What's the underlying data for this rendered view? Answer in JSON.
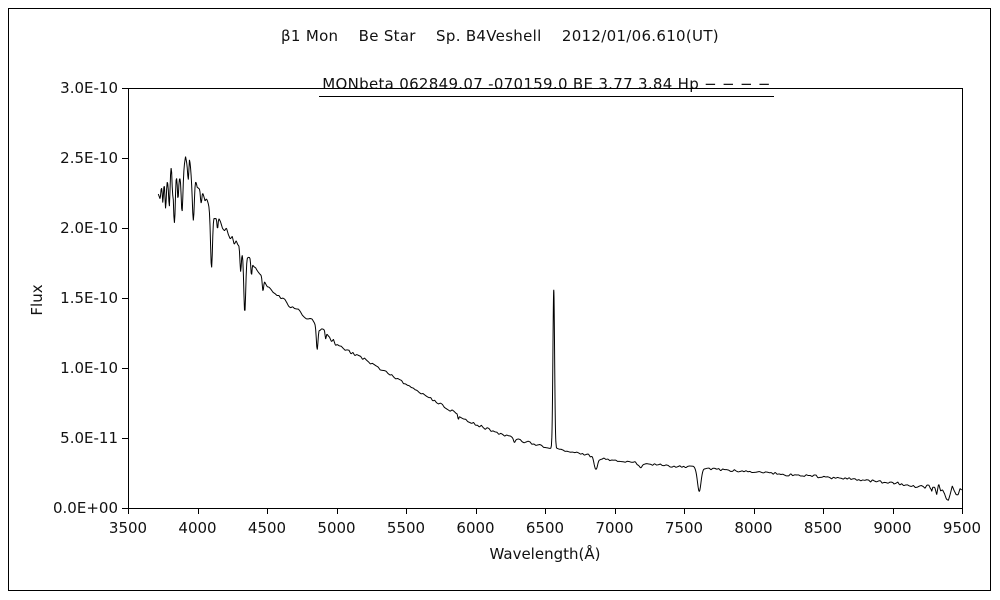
{
  "chart_data": {
    "type": "line",
    "title": "β1 Mon    Be Star    Sp. B4Veshell    2012/01/06.610(UT)",
    "subtitle": "MONbeta 062849.07 -070159.0 BE 3.77 3.84 Hp − − − −",
    "xlabel": "Wavelength(Å)",
    "ylabel": "Flux",
    "xlim": [
      3500,
      9500
    ],
    "ylim": [
      0,
      3e-10
    ],
    "x_ticks": [
      3500,
      4000,
      4500,
      5000,
      5500,
      6000,
      6500,
      7000,
      7500,
      8000,
      8500,
      9000,
      9500
    ],
    "y_ticks": [
      {
        "value": 0,
        "label": "0.0E+00"
      },
      {
        "value": 5e-11,
        "label": "5.0E-11"
      },
      {
        "value": 1e-10,
        "label": "1.0E-10"
      },
      {
        "value": 1.5e-10,
        "label": "1.5E-10"
      },
      {
        "value": 2e-10,
        "label": "2.0E-10"
      },
      {
        "value": 2.5e-10,
        "label": "2.5E-10"
      },
      {
        "value": 3e-10,
        "label": "3.0E-10"
      }
    ],
    "grid": false,
    "legend": false,
    "line_color": "#000000",
    "flux_scale": 1e-10,
    "spectrum": {
      "x_start": 3718,
      "x_end": 9500,
      "sample_step": 4,
      "noise_knot_step": 14,
      "seed": 20120106,
      "continuum_points": [
        [
          3718,
          2.26
        ],
        [
          3760,
          2.34
        ],
        [
          3800,
          2.37
        ],
        [
          3850,
          2.4
        ],
        [
          3900,
          2.42
        ],
        [
          3950,
          2.4
        ],
        [
          4000,
          2.33
        ],
        [
          4050,
          2.24
        ],
        [
          4100,
          2.12
        ],
        [
          4150,
          2.05
        ],
        [
          4200,
          1.98
        ],
        [
          4250,
          1.92
        ],
        [
          4300,
          1.86
        ],
        [
          4350,
          1.79
        ],
        [
          4400,
          1.73
        ],
        [
          4450,
          1.66
        ],
        [
          4500,
          1.6
        ],
        [
          4600,
          1.5
        ],
        [
          4700,
          1.42
        ],
        [
          4800,
          1.35
        ],
        [
          4900,
          1.27
        ],
        [
          5000,
          1.17
        ],
        [
          5100,
          1.11
        ],
        [
          5200,
          1.06
        ],
        [
          5300,
          1.0
        ],
        [
          5400,
          0.94
        ],
        [
          5500,
          0.89
        ],
        [
          5600,
          0.83
        ],
        [
          5700,
          0.77
        ],
        [
          5800,
          0.71
        ],
        [
          5900,
          0.65
        ],
        [
          6000,
          0.6
        ],
        [
          6100,
          0.56
        ],
        [
          6200,
          0.52
        ],
        [
          6300,
          0.49
        ],
        [
          6400,
          0.46
        ],
        [
          6500,
          0.44
        ],
        [
          6600,
          0.42
        ],
        [
          6700,
          0.4
        ],
        [
          6800,
          0.38
        ],
        [
          6900,
          0.355
        ],
        [
          7000,
          0.34
        ],
        [
          7100,
          0.33
        ],
        [
          7200,
          0.32
        ],
        [
          7300,
          0.31
        ],
        [
          7400,
          0.3
        ],
        [
          7500,
          0.295
        ],
        [
          7600,
          0.29
        ],
        [
          7700,
          0.28
        ],
        [
          7800,
          0.27
        ],
        [
          7900,
          0.265
        ],
        [
          8000,
          0.26
        ],
        [
          8200,
          0.245
        ],
        [
          8400,
          0.23
        ],
        [
          8600,
          0.215
        ],
        [
          8800,
          0.2
        ],
        [
          9000,
          0.175
        ],
        [
          9200,
          0.155
        ],
        [
          9350,
          0.14
        ],
        [
          9450,
          0.125
        ],
        [
          9500,
          0.11
        ]
      ],
      "absorption_lines": [
        {
          "center": 3750,
          "depth": 0.2,
          "sigma": 5
        },
        {
          "center": 3771,
          "depth": 0.24,
          "sigma": 5
        },
        {
          "center": 3798,
          "depth": 0.26,
          "sigma": 5
        },
        {
          "center": 3820,
          "depth": 0.14,
          "sigma": 4
        },
        {
          "center": 3835,
          "depth": 0.3,
          "sigma": 6
        },
        {
          "center": 3860,
          "depth": 0.12,
          "sigma": 4
        },
        {
          "center": 3889,
          "depth": 0.28,
          "sigma": 6
        },
        {
          "center": 3934,
          "depth": 0.12,
          "sigma": 4
        },
        {
          "center": 3970,
          "depth": 0.3,
          "sigma": 7
        },
        {
          "center": 4026,
          "depth": 0.13,
          "sigma": 5
        },
        {
          "center": 4101,
          "depth": 0.4,
          "sigma": 7
        },
        {
          "center": 4144,
          "depth": 0.08,
          "sigma": 4
        },
        {
          "center": 4310,
          "depth": 0.18,
          "sigma": 5
        },
        {
          "center": 4340,
          "depth": 0.42,
          "sigma": 7
        },
        {
          "center": 4388,
          "depth": 0.1,
          "sigma": 4
        },
        {
          "center": 4471,
          "depth": 0.1,
          "sigma": 5
        },
        {
          "center": 4861,
          "depth": 0.17,
          "sigma": 6
        },
        {
          "center": 4922,
          "depth": 0.06,
          "sigma": 4
        },
        {
          "center": 5876,
          "depth": 0.04,
          "sigma": 4
        },
        {
          "center": 6280,
          "depth": 0.025,
          "sigma": 6
        },
        {
          "center": 6867,
          "depth": 0.095,
          "sigma": 12
        },
        {
          "center": 7186,
          "depth": 0.028,
          "sigma": 16
        },
        {
          "center": 7610,
          "depth": 0.165,
          "sigma": 13
        },
        {
          "center": 8230,
          "depth": 0.015,
          "sigma": 15
        },
        {
          "center": 9380,
          "depth": 0.03,
          "sigma": 35
        }
      ],
      "emission_lines": [
        {
          "center": 6563,
          "height": 1.13,
          "sigma": 6
        }
      ],
      "noise_regions": [
        {
          "from": 3715,
          "to": 3980,
          "amp": 0.1
        },
        {
          "from": 3980,
          "to": 4060,
          "amp": 0.055
        },
        {
          "from": 4060,
          "to": 4400,
          "amp": 0.032
        },
        {
          "from": 4400,
          "to": 5000,
          "amp": 0.02
        },
        {
          "from": 5000,
          "to": 5600,
          "amp": 0.013
        },
        {
          "from": 5600,
          "to": 6400,
          "amp": 0.011
        },
        {
          "from": 6400,
          "to": 7000,
          "amp": 0.009
        },
        {
          "from": 7000,
          "to": 8400,
          "amp": 0.008
        },
        {
          "from": 8400,
          "to": 9000,
          "amp": 0.01
        },
        {
          "from": 9000,
          "to": 9280,
          "amp": 0.016
        },
        {
          "from": 9280,
          "to": 9505,
          "amp": 0.055
        }
      ]
    }
  }
}
